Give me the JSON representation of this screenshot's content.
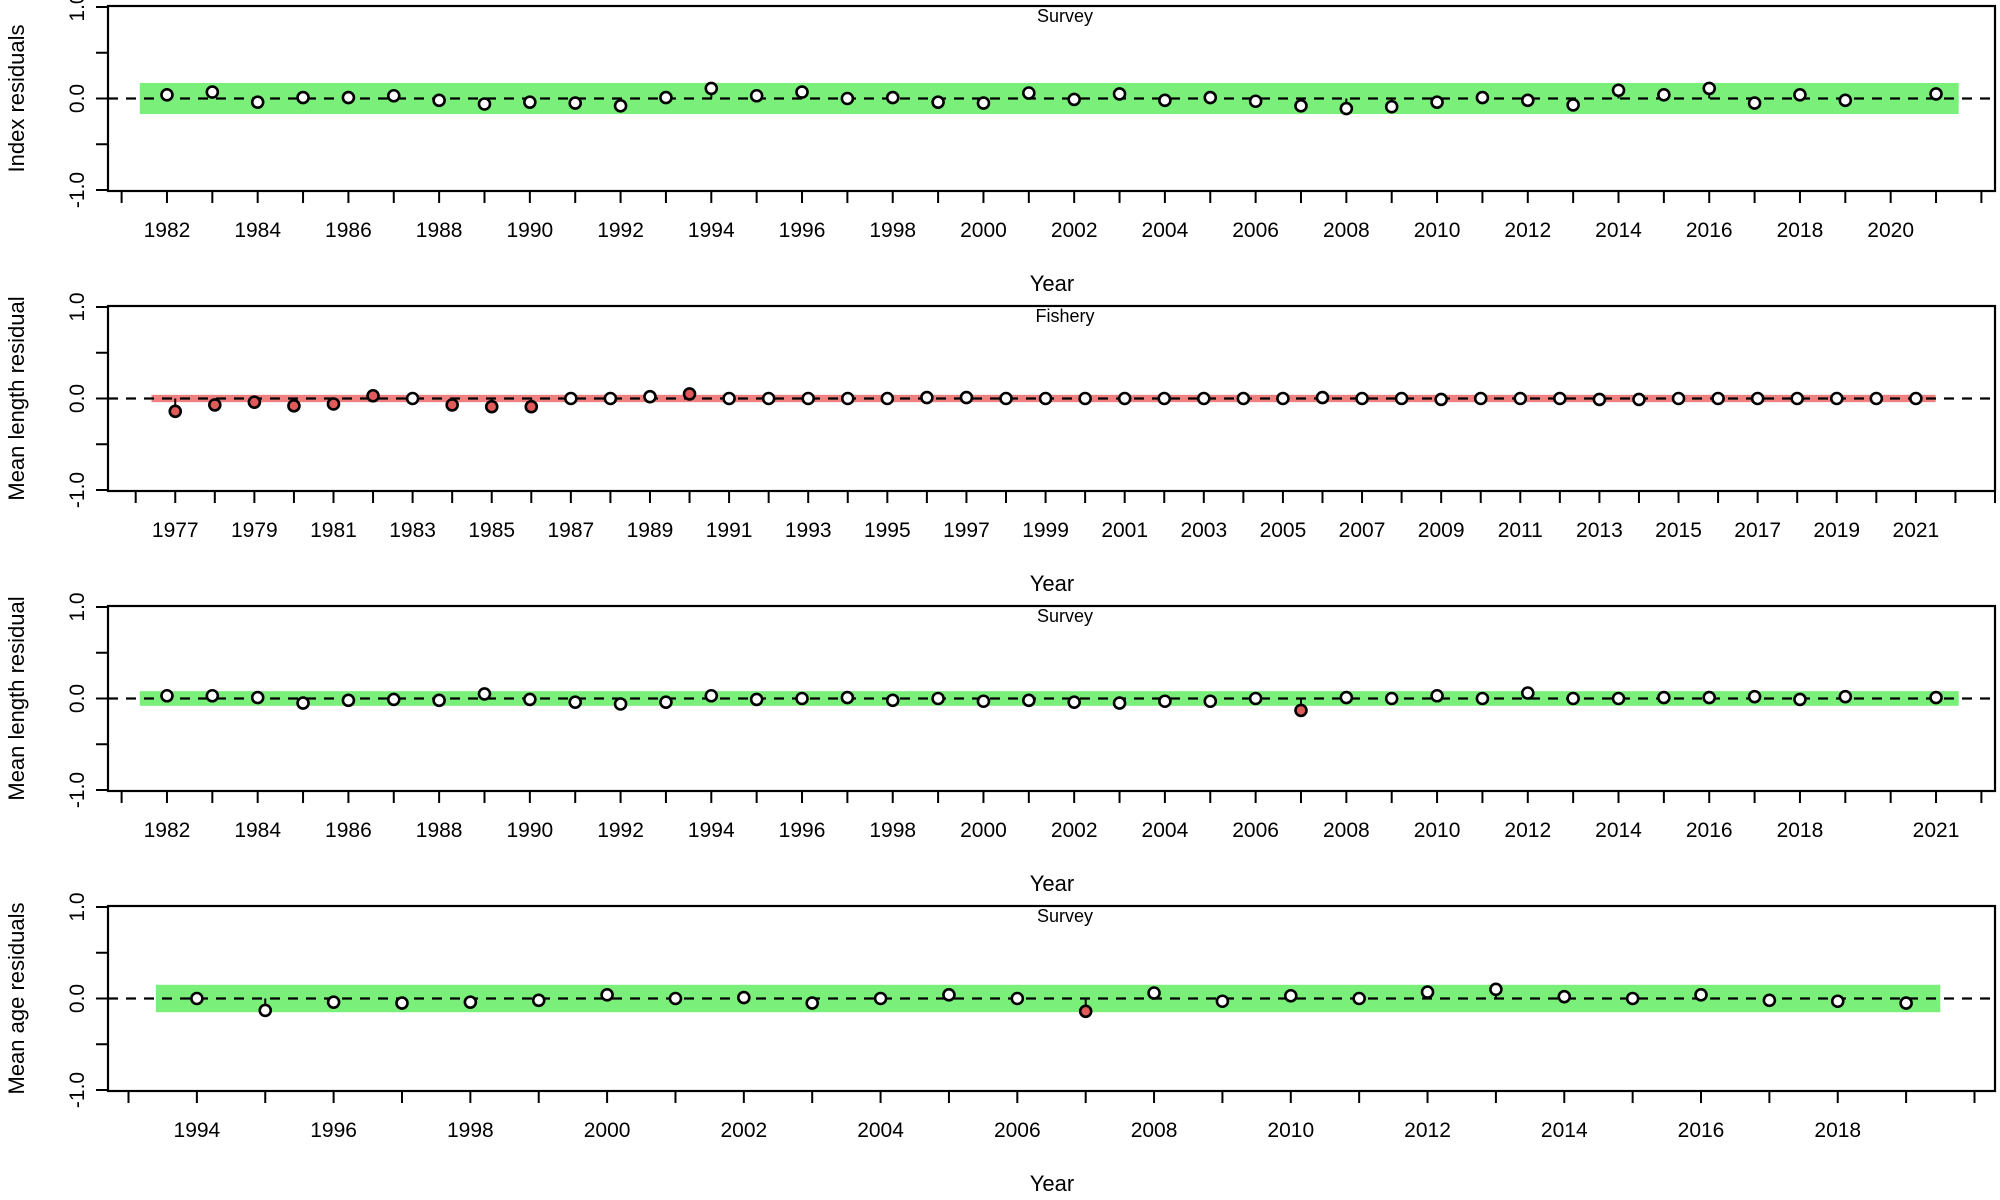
{
  "chart_data": [
    {
      "type": "scatter",
      "title": "Survey",
      "ylabel": "Index residuals",
      "xlabel": "Year",
      "ylim": [
        -1.0,
        1.0
      ],
      "y_ticks": [
        "-1.0",
        "0.0",
        "1.0"
      ],
      "xlim": [
        1980.7,
        2022.3
      ],
      "x_ticks": [
        "1982",
        "1984",
        "1986",
        "1988",
        "1990",
        "1992",
        "1994",
        "1996",
        "1998",
        "2000",
        "2002",
        "2004",
        "2006",
        "2008",
        "2010",
        "2012",
        "2014",
        "2016",
        "2018",
        "2020"
      ],
      "band": [
        -0.17,
        0.17
      ],
      "band_color": "#7af07a",
      "reference_line": 0.0,
      "x": [
        1982,
        1983,
        1984,
        1985,
        1986,
        1987,
        1988,
        1989,
        1990,
        1991,
        1992,
        1993,
        1994,
        1995,
        1996,
        1997,
        1998,
        1999,
        2000,
        2001,
        2002,
        2003,
        2004,
        2005,
        2006,
        2007,
        2008,
        2009,
        2010,
        2011,
        2012,
        2013,
        2014,
        2015,
        2016,
        2017,
        2018,
        2019,
        2021
      ],
      "y": [
        0.04,
        0.07,
        -0.04,
        0.01,
        0.01,
        0.03,
        -0.02,
        -0.06,
        -0.04,
        -0.05,
        -0.08,
        0.01,
        0.11,
        0.03,
        0.07,
        0.0,
        0.01,
        -0.04,
        -0.05,
        0.06,
        -0.01,
        0.05,
        -0.02,
        0.01,
        -0.03,
        -0.08,
        -0.11,
        -0.09,
        -0.04,
        0.01,
        -0.02,
        -0.07,
        0.09,
        0.04,
        0.11,
        -0.05,
        0.04,
        -0.02,
        0.05
      ],
      "colors": [
        "#ffffff",
        "#ffffff",
        "#ffffff",
        "#ffffff",
        "#ffffff",
        "#ffffff",
        "#ffffff",
        "#ffffff",
        "#ffffff",
        "#ffffff",
        "#ffffff",
        "#ffffff",
        "#ffffff",
        "#ffffff",
        "#ffffff",
        "#ffffff",
        "#ffffff",
        "#ffffff",
        "#ffffff",
        "#ffffff",
        "#ffffff",
        "#ffffff",
        "#ffffff",
        "#ffffff",
        "#ffffff",
        "#ffffff",
        "#ffffff",
        "#ffffff",
        "#ffffff",
        "#ffffff",
        "#ffffff",
        "#ffffff",
        "#ffffff",
        "#ffffff",
        "#ffffff",
        "#ffffff",
        "#ffffff",
        "#ffffff",
        "#ffffff"
      ]
    },
    {
      "type": "scatter",
      "title": "Fishery",
      "ylabel": "Mean length residual",
      "xlabel": "Year",
      "ylim": [
        -1.0,
        1.0
      ],
      "y_ticks": [
        "-1.0",
        "0.0",
        "1.0"
      ],
      "xlim": [
        1975.3,
        2023.0
      ],
      "x_ticks": [
        "1977",
        "1979",
        "1981",
        "1983",
        "1985",
        "1987",
        "1989",
        "1991",
        "1993",
        "1995",
        "1997",
        "1999",
        "2001",
        "2003",
        "2005",
        "2007",
        "2009",
        "2011",
        "2013",
        "2015",
        "2017",
        "2019",
        "2021"
      ],
      "band": [
        -0.04,
        0.04
      ],
      "band_color": "#f08080",
      "reference_line": 0.0,
      "x": [
        1977,
        1978,
        1979,
        1980,
        1981,
        1982,
        1983,
        1984,
        1985,
        1986,
        1987,
        1988,
        1989,
        1990,
        1991,
        1992,
        1993,
        1994,
        1995,
        1996,
        1997,
        1998,
        1999,
        2000,
        2001,
        2002,
        2003,
        2004,
        2005,
        2006,
        2007,
        2008,
        2009,
        2010,
        2011,
        2012,
        2013,
        2014,
        2015,
        2016,
        2017,
        2018,
        2019,
        2020,
        2021
      ],
      "y": [
        -0.14,
        -0.07,
        -0.04,
        -0.08,
        -0.06,
        0.03,
        0.0,
        -0.07,
        -0.09,
        -0.09,
        0.0,
        0.0,
        0.02,
        0.05,
        0.0,
        0.0,
        0.0,
        0.0,
        0.0,
        0.01,
        0.01,
        0.0,
        0.0,
        0.0,
        0.0,
        0.0,
        0.0,
        0.0,
        0.0,
        0.01,
        0.0,
        0.0,
        -0.01,
        0.0,
        0.0,
        0.0,
        -0.01,
        -0.01,
        0.0,
        0.0,
        0.0,
        0.0,
        0.0,
        0.0,
        0.0
      ],
      "colors": [
        "#e05a5a",
        "#e05a5a",
        "#e05a5a",
        "#e05a5a",
        "#e05a5a",
        "#e05a5a",
        "#ffffff",
        "#e05a5a",
        "#e05a5a",
        "#e05a5a",
        "#ffffff",
        "#ffffff",
        "#ffffff",
        "#e05a5a",
        "#ffffff",
        "#ffffff",
        "#ffffff",
        "#ffffff",
        "#ffffff",
        "#ffffff",
        "#ffffff",
        "#ffffff",
        "#ffffff",
        "#ffffff",
        "#ffffff",
        "#ffffff",
        "#ffffff",
        "#ffffff",
        "#ffffff",
        "#ffffff",
        "#ffffff",
        "#ffffff",
        "#ffffff",
        "#ffffff",
        "#ffffff",
        "#ffffff",
        "#ffffff",
        "#ffffff",
        "#ffffff",
        "#ffffff",
        "#ffffff",
        "#ffffff",
        "#ffffff",
        "#ffffff",
        "#ffffff"
      ]
    },
    {
      "type": "scatter",
      "title": "Survey",
      "ylabel": "Mean length residual",
      "xlabel": "Year",
      "ylim": [
        -1.0,
        1.0
      ],
      "y_ticks": [
        "-1.0",
        "0.0",
        "1.0"
      ],
      "xlim": [
        1980.7,
        2022.3
      ],
      "x_ticks": [
        "1982",
        "1984",
        "1986",
        "1988",
        "1990",
        "1992",
        "1994",
        "1996",
        "1998",
        "2000",
        "2002",
        "2004",
        "2006",
        "2008",
        "2010",
        "2012",
        "2014",
        "2016",
        "2018",
        "2021"
      ],
      "band": [
        -0.08,
        0.08
      ],
      "band_color": "#7af07a",
      "reference_line": 0.0,
      "x": [
        1982,
        1983,
        1984,
        1985,
        1986,
        1987,
        1988,
        1989,
        1990,
        1991,
        1992,
        1993,
        1994,
        1995,
        1996,
        1997,
        1998,
        1999,
        2000,
        2001,
        2002,
        2003,
        2004,
        2005,
        2006,
        2007,
        2008,
        2009,
        2010,
        2011,
        2012,
        2013,
        2014,
        2015,
        2016,
        2017,
        2018,
        2019,
        2021
      ],
      "y": [
        0.03,
        0.03,
        0.01,
        -0.05,
        -0.02,
        -0.01,
        -0.02,
        0.05,
        -0.01,
        -0.04,
        -0.06,
        -0.04,
        0.03,
        -0.01,
        0.0,
        0.01,
        -0.02,
        0.0,
        -0.03,
        -0.02,
        -0.04,
        -0.05,
        -0.03,
        -0.03,
        0.0,
        -0.13,
        0.01,
        0.0,
        0.03,
        0.0,
        0.06,
        0.0,
        0.0,
        0.01,
        0.01,
        0.02,
        -0.01,
        0.02,
        0.01
      ],
      "colors": [
        "#ffffff",
        "#ffffff",
        "#ffffff",
        "#ffffff",
        "#ffffff",
        "#ffffff",
        "#ffffff",
        "#ffffff",
        "#ffffff",
        "#ffffff",
        "#ffffff",
        "#ffffff",
        "#ffffff",
        "#ffffff",
        "#ffffff",
        "#ffffff",
        "#ffffff",
        "#ffffff",
        "#ffffff",
        "#ffffff",
        "#ffffff",
        "#ffffff",
        "#ffffff",
        "#ffffff",
        "#ffffff",
        "#e05a5a",
        "#ffffff",
        "#ffffff",
        "#ffffff",
        "#ffffff",
        "#ffffff",
        "#ffffff",
        "#ffffff",
        "#ffffff",
        "#ffffff",
        "#ffffff",
        "#ffffff",
        "#ffffff",
        "#ffffff"
      ]
    },
    {
      "type": "scatter",
      "title": "Survey",
      "ylabel": "Mean age residuals",
      "xlabel": "Year",
      "ylim": [
        -1.0,
        1.0
      ],
      "y_ticks": [
        "-1.0",
        "0.0",
        "1.0"
      ],
      "xlim": [
        1992.7,
        2020.3
      ],
      "x_ticks": [
        "1994",
        "1996",
        "1998",
        "2000",
        "2002",
        "2004",
        "2006",
        "2008",
        "2010",
        "2012",
        "2014",
        "2016",
        "2018"
      ],
      "band": [
        -0.15,
        0.15
      ],
      "band_color": "#7af07a",
      "reference_line": 0.0,
      "x": [
        1994,
        1995,
        1996,
        1997,
        1998,
        1999,
        2000,
        2001,
        2002,
        2003,
        2004,
        2005,
        2006,
        2007,
        2008,
        2009,
        2010,
        2011,
        2012,
        2013,
        2014,
        2015,
        2016,
        2017,
        2018,
        2019
      ],
      "y": [
        0.0,
        -0.13,
        -0.04,
        -0.05,
        -0.04,
        -0.02,
        0.04,
        0.0,
        0.01,
        -0.05,
        0.0,
        0.04,
        0.0,
        -0.14,
        0.06,
        -0.03,
        0.03,
        0.0,
        0.07,
        0.1,
        0.02,
        0.0,
        0.04,
        -0.02,
        -0.03,
        -0.05
      ],
      "colors": [
        "#ffffff",
        "#ffffff",
        "#ffffff",
        "#ffffff",
        "#ffffff",
        "#ffffff",
        "#ffffff",
        "#ffffff",
        "#ffffff",
        "#ffffff",
        "#ffffff",
        "#ffffff",
        "#ffffff",
        "#e05a5a",
        "#ffffff",
        "#ffffff",
        "#ffffff",
        "#ffffff",
        "#ffffff",
        "#ffffff",
        "#ffffff",
        "#ffffff",
        "#ffffff",
        "#ffffff",
        "#ffffff",
        "#ffffff"
      ]
    }
  ]
}
